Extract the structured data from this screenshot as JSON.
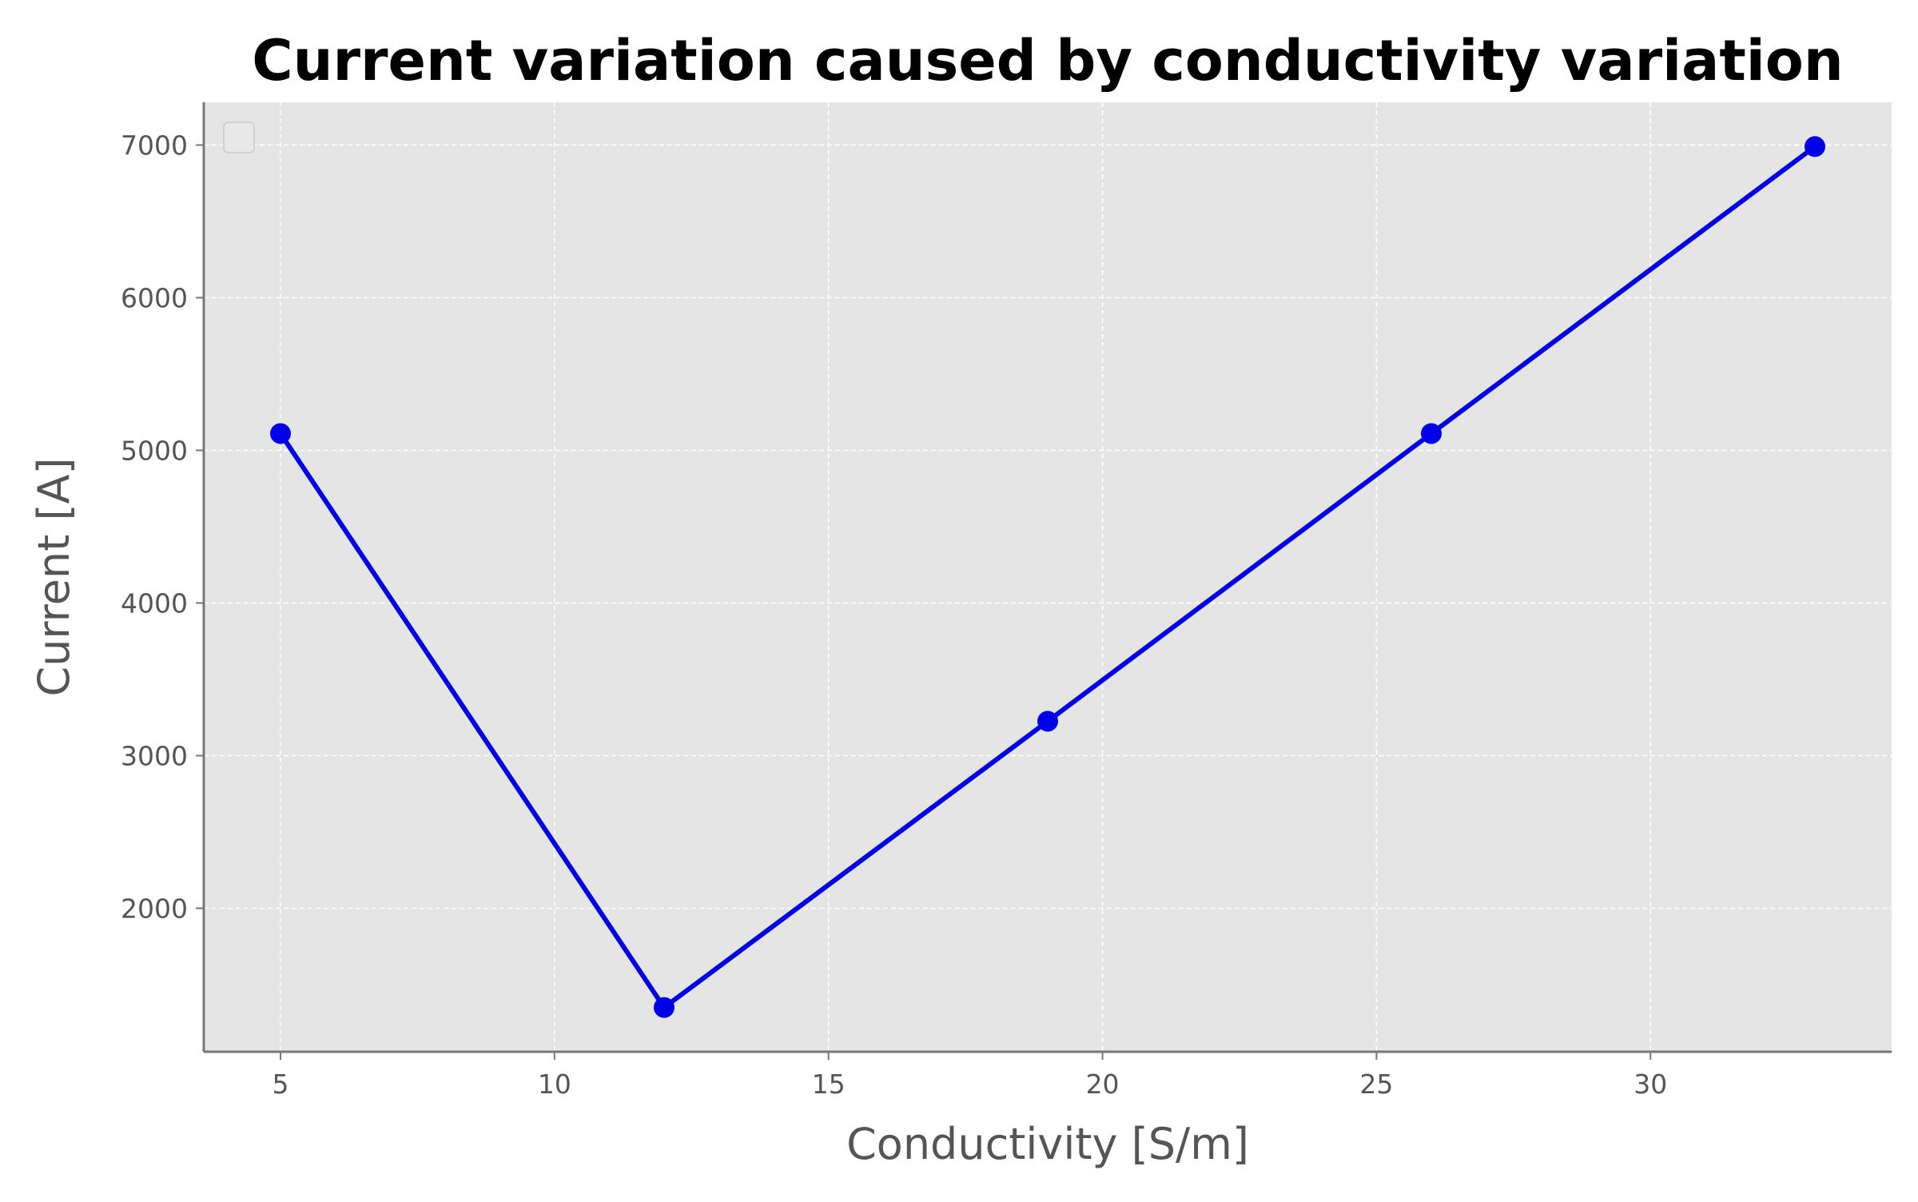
{
  "chart_data": {
    "type": "line",
    "title": "Current variation caused by conductivity variation",
    "xlabel": "Conductivity [S/m]",
    "ylabel": "Current [A]",
    "xlim": [
      3.6,
      34.4
    ],
    "ylim": [
      1060,
      7280
    ],
    "xticks": [
      5,
      10,
      15,
      20,
      25,
      30
    ],
    "yticks": [
      2000,
      3000,
      4000,
      5000,
      6000,
      7000
    ],
    "grid": true,
    "legend": "top-left (empty)",
    "series": [
      {
        "x": [
          5,
          12,
          19,
          26,
          33
        ],
        "y": [
          5110,
          1350,
          3225,
          5110,
          6990
        ],
        "color": "#0000e6",
        "marker": "circle"
      }
    ],
    "colors": {
      "plot_background": "#e5e5e5",
      "grid": "#ffffff",
      "axis": "#777777",
      "text": "#555555"
    }
  }
}
